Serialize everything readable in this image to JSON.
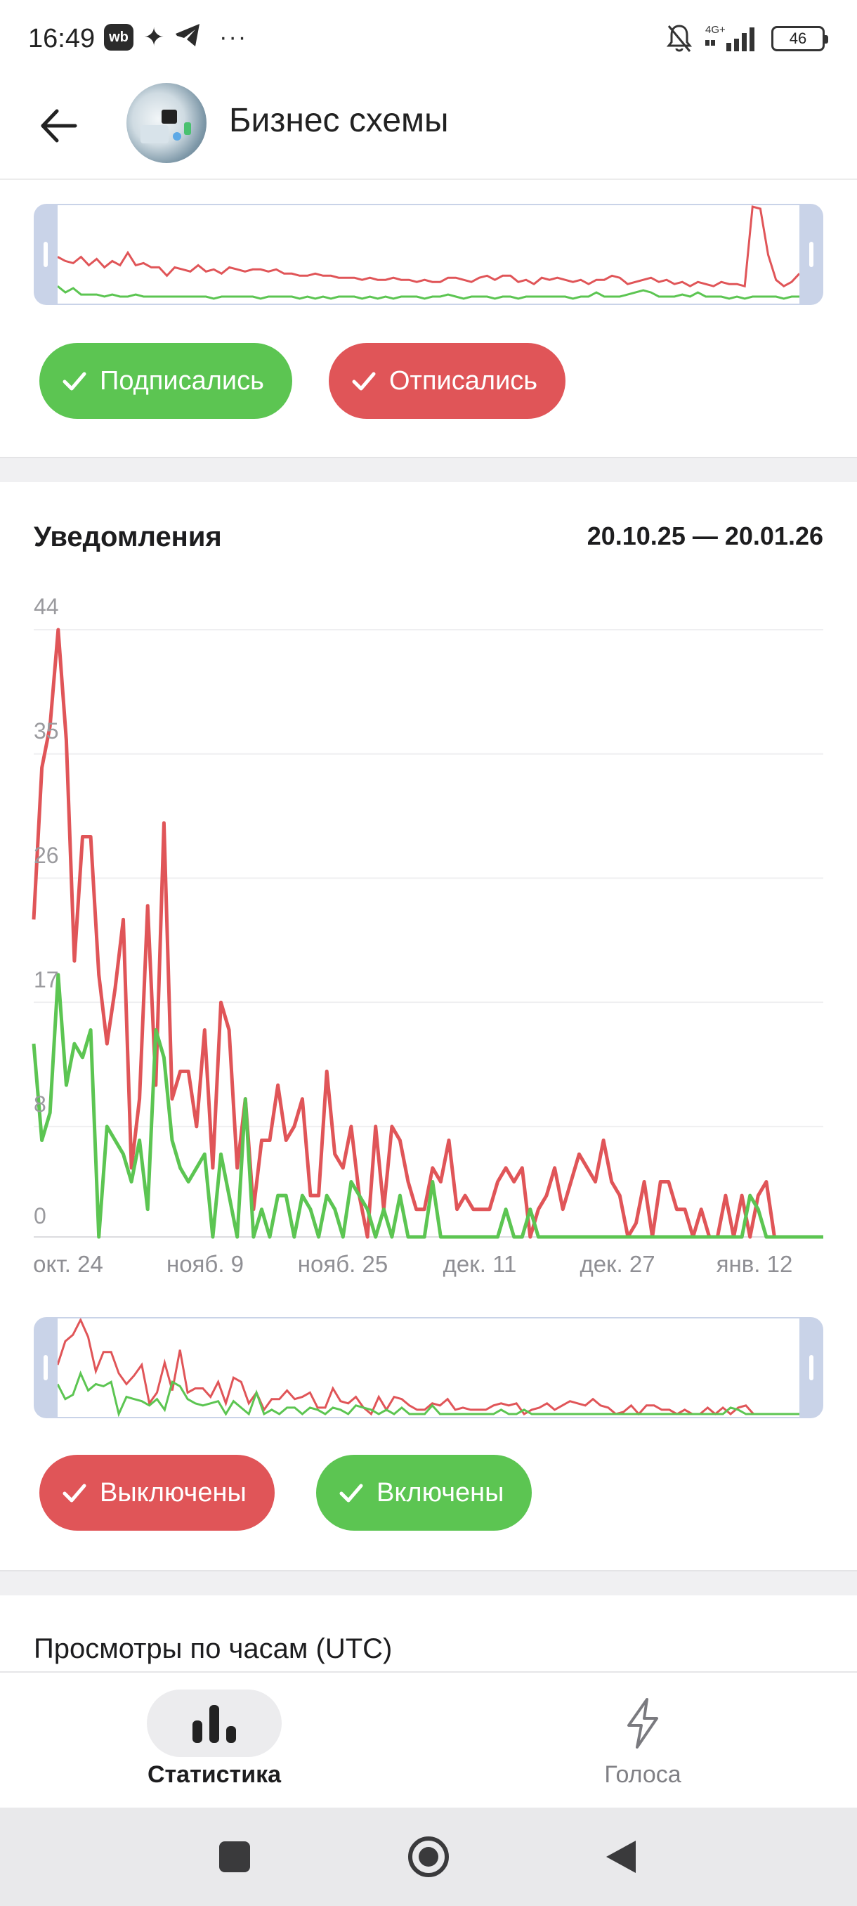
{
  "status_bar": {
    "time": "16:49",
    "wb_label": "wb",
    "network": "4G+",
    "battery": "46"
  },
  "header": {
    "title": "Бизнес схемы"
  },
  "subscribers_card": {
    "filters": [
      {
        "label": "Подписались",
        "color": "#5cc552"
      },
      {
        "label": "Отписались",
        "color": "#e05558"
      }
    ],
    "overview_series": {
      "red": [
        21,
        19,
        18,
        21,
        17,
        20,
        16,
        19,
        17,
        23,
        17,
        18,
        16,
        16,
        12,
        16,
        15,
        14,
        17,
        14,
        15,
        13,
        16,
        15,
        14,
        15,
        15,
        14,
        15,
        13,
        13,
        12,
        12,
        13,
        12,
        12,
        11,
        11,
        11,
        10,
        11,
        10,
        10,
        11,
        10,
        10,
        9,
        10,
        9,
        9,
        11,
        11,
        10,
        9,
        11,
        12,
        10,
        12,
        12,
        9,
        10,
        8,
        11,
        10,
        11,
        10,
        9,
        10,
        8,
        10,
        10,
        12,
        11,
        8,
        9,
        10,
        11,
        9,
        10,
        8,
        9,
        7,
        9,
        8,
        7,
        9,
        8,
        8,
        7,
        45,
        44,
        22,
        10,
        7,
        9,
        13
      ],
      "green": [
        7,
        4,
        6,
        3,
        3,
        3,
        2,
        3,
        2,
        2,
        3,
        2,
        2,
        2,
        2,
        2,
        2,
        2,
        2,
        2,
        1,
        2,
        2,
        2,
        2,
        2,
        1,
        2,
        2,
        2,
        2,
        1,
        2,
        1,
        2,
        1,
        2,
        2,
        2,
        1,
        2,
        1,
        2,
        1,
        2,
        2,
        2,
        1,
        2,
        2,
        3,
        2,
        1,
        2,
        2,
        2,
        1,
        2,
        2,
        1,
        2,
        2,
        2,
        2,
        2,
        2,
        1,
        2,
        2,
        4,
        2,
        2,
        2,
        3,
        4,
        5,
        4,
        2,
        2,
        2,
        3,
        2,
        4,
        2,
        2,
        2,
        1,
        2,
        1,
        2,
        2,
        2,
        2,
        1,
        2,
        2
      ]
    }
  },
  "notifications_card": {
    "title": "Уведомления",
    "date_range": "20.10.25 — 20.01.26",
    "filters": [
      {
        "label": "Выключены",
        "color": "#e05558"
      },
      {
        "label": "Включены",
        "color": "#5cc552"
      }
    ]
  },
  "chart_data": {
    "type": "line",
    "title": "Уведомления",
    "x_tick_labels": [
      "окт. 24",
      "нояб. 9",
      "нояб. 25",
      "дек. 11",
      "дек. 27",
      "янв. 12"
    ],
    "y_tick_labels": [
      "44",
      "35",
      "26",
      "17",
      "8",
      "0"
    ],
    "ylim": [
      0,
      44
    ],
    "grid": true,
    "series": [
      {
        "name": "Выключены",
        "color": "#e05558",
        "values": [
          23,
          34,
          37,
          44,
          36,
          20,
          29,
          29,
          19,
          14,
          18,
          23,
          5,
          10,
          24,
          11,
          30,
          10,
          12,
          12,
          8,
          15,
          5,
          17,
          15,
          5,
          10,
          2,
          7,
          7,
          11,
          7,
          8,
          10,
          3,
          3,
          12,
          6,
          5,
          8,
          3,
          0,
          8,
          2,
          8,
          7,
          4,
          2,
          2,
          5,
          4,
          7,
          2,
          3,
          2,
          2,
          2,
          4,
          5,
          4,
          5,
          0,
          2,
          3,
          5,
          2,
          4,
          6,
          5,
          4,
          7,
          4,
          3,
          0,
          1,
          4,
          0,
          4,
          4,
          2,
          2,
          0,
          2,
          0,
          0,
          3,
          0,
          3,
          0,
          3,
          4,
          0,
          0,
          0,
          0,
          0,
          0,
          0
        ]
      },
      {
        "name": "Включены",
        "color": "#5cc552",
        "values": [
          14,
          7,
          9,
          19,
          11,
          14,
          13,
          15,
          0,
          8,
          7,
          6,
          4,
          7,
          2,
          15,
          13,
          7,
          5,
          4,
          5,
          6,
          0,
          6,
          3,
          0,
          10,
          0,
          2,
          0,
          3,
          3,
          0,
          3,
          2,
          0,
          3,
          2,
          0,
          4,
          3,
          2,
          0,
          2,
          0,
          3,
          0,
          0,
          0,
          4,
          0,
          0,
          0,
          0,
          0,
          0,
          0,
          0,
          2,
          0,
          0,
          2,
          0,
          0,
          0,
          0,
          0,
          0,
          0,
          0,
          0,
          0,
          0,
          0,
          0,
          0,
          0,
          0,
          0,
          0,
          0,
          0,
          0,
          0,
          0,
          0,
          0,
          0,
          3,
          2,
          0,
          0,
          0,
          0,
          0,
          0,
          0,
          0
        ]
      }
    ]
  },
  "next_section": {
    "title": "Просмотры по часам (UTC)"
  },
  "bottom_nav": {
    "items": [
      {
        "label": "Статистика",
        "icon": "bar-chart-icon",
        "active": true
      },
      {
        "label": "Голоса",
        "icon": "lightning-icon",
        "active": false
      }
    ]
  }
}
